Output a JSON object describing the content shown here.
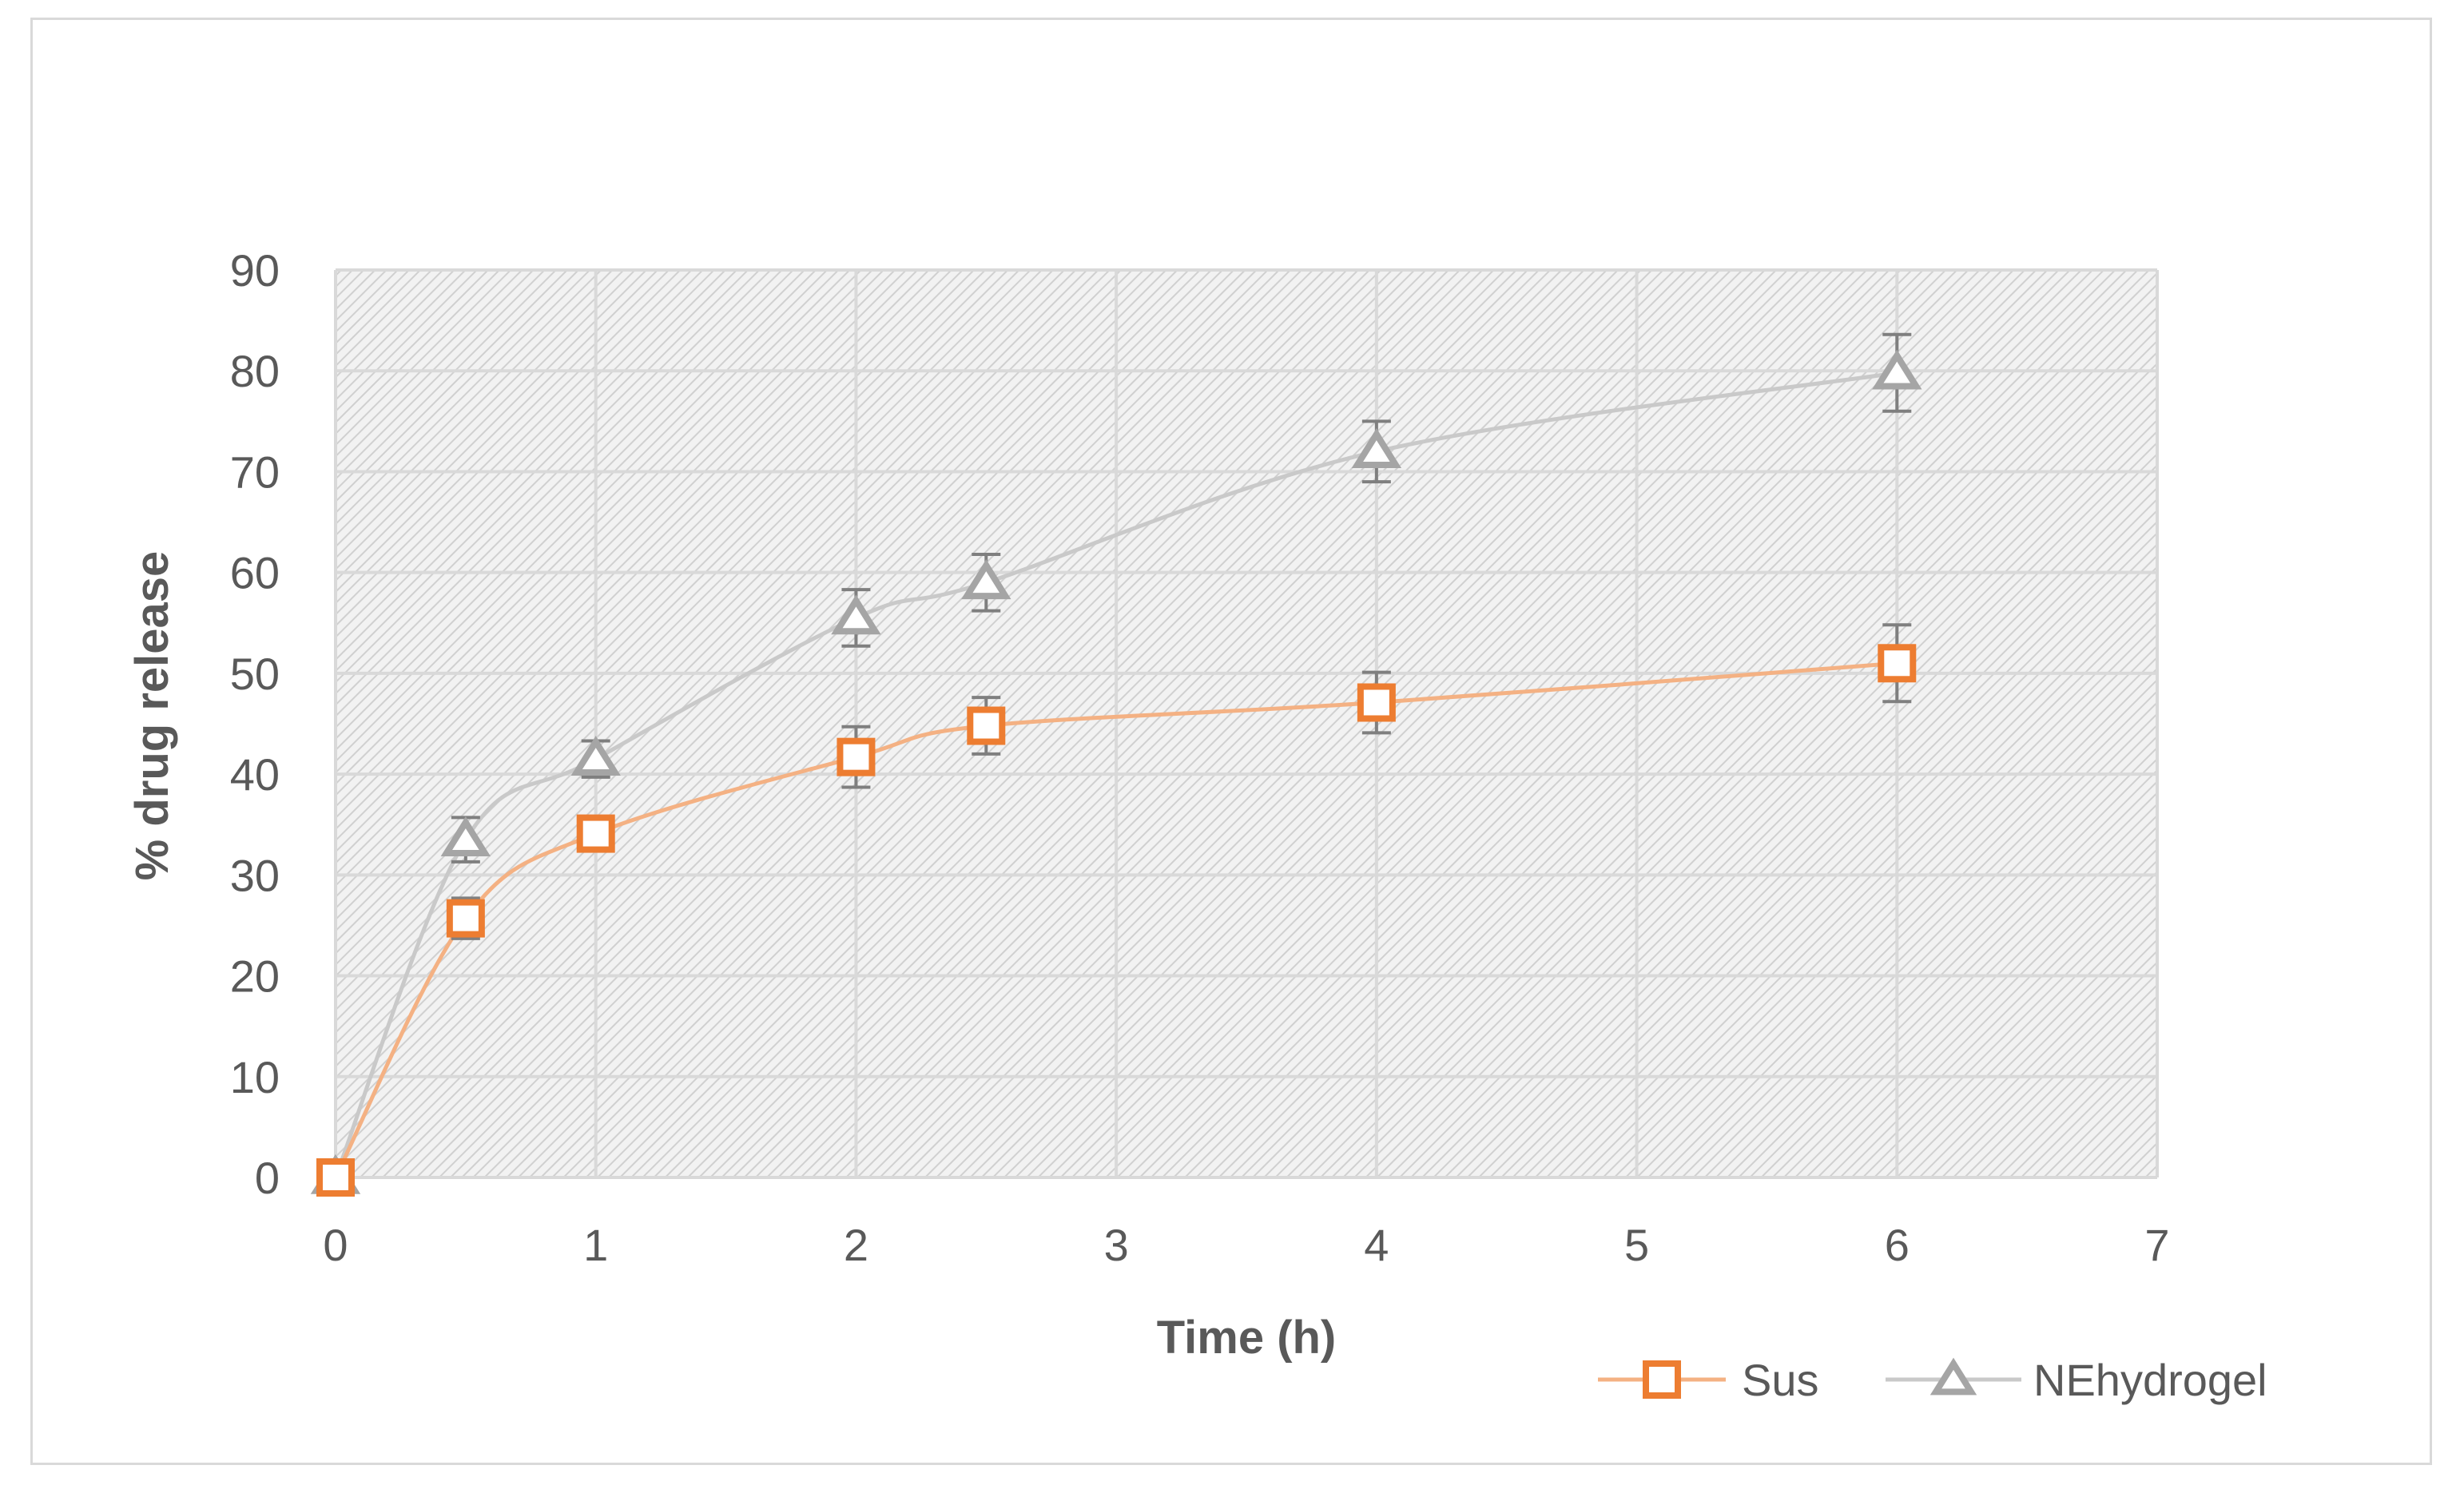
{
  "chart_data": {
    "type": "line",
    "title": "",
    "xlabel": "Time (h)",
    "ylabel": "% drug release",
    "xlim": [
      0,
      7
    ],
    "ylim": [
      0,
      90
    ],
    "xticks": [
      "0",
      "1",
      "2",
      "3",
      "4",
      "5",
      "6",
      "7"
    ],
    "yticks": [
      "0",
      "10",
      "20",
      "30",
      "40",
      "50",
      "60",
      "70",
      "80",
      "90"
    ],
    "grid": true,
    "legend_position": "bottom-right",
    "series": [
      {
        "name": "Sus",
        "color": "#ed7d31",
        "line_color": "#f4b183",
        "marker": "square",
        "x": [
          0,
          0.5,
          1,
          2,
          2.5,
          4,
          6
        ],
        "y": [
          0,
          25.7,
          34.1,
          41.7,
          44.8,
          47.1,
          51.0
        ],
        "err": [
          0,
          2.0,
          1.5,
          3.0,
          2.8,
          3.0,
          3.8
        ]
      },
      {
        "name": "NEhydrogel",
        "color": "#a5a5a5",
        "line_color": "#c9c9c9",
        "marker": "triangle",
        "x": [
          0,
          0.5,
          1,
          2,
          2.5,
          4,
          6
        ],
        "y": [
          0,
          33.5,
          41.5,
          55.5,
          59.0,
          72.0,
          79.8
        ],
        "err": [
          0,
          2.2,
          1.8,
          2.8,
          2.8,
          3.0,
          3.8
        ]
      }
    ]
  }
}
